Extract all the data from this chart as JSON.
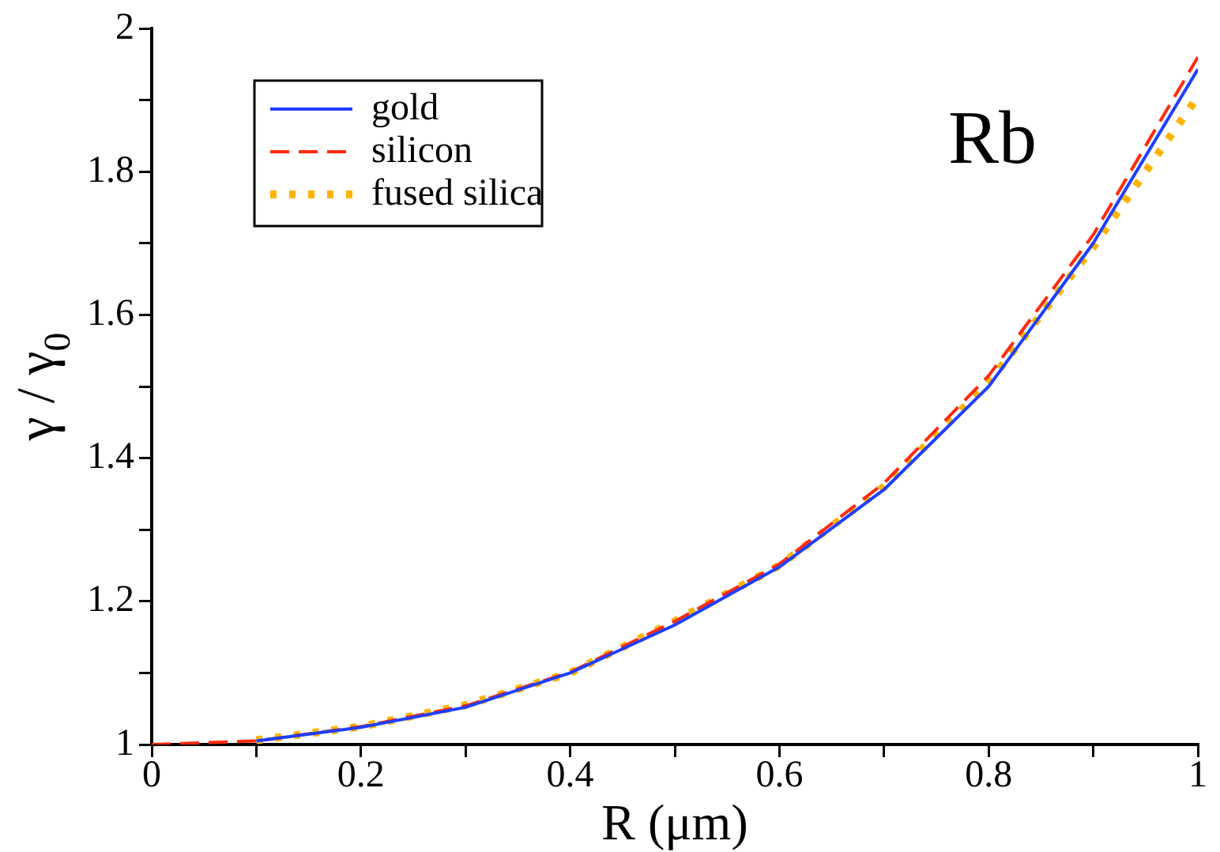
{
  "chart_data": {
    "type": "line",
    "xlabel": "R (μm)",
    "ylabel": "γ / γ$_{0}$",
    "annotations": [
      "Rb"
    ],
    "xlim": [
      0,
      1
    ],
    "ylim": [
      1,
      2
    ],
    "xticks": [
      0,
      {
        "value": 0.1,
        "label": null
      },
      0.2,
      {
        "value": 0.3,
        "label": null
      },
      0.4,
      {
        "value": 0.5,
        "label": null
      },
      0.6,
      {
        "value": 0.7,
        "label": null
      },
      0.8,
      {
        "value": 0.9,
        "label": null
      },
      1
    ],
    "yticks": [
      1,
      {
        "value": 1.1,
        "label": null
      },
      1.2,
      {
        "value": 1.3,
        "label": null
      },
      1.4,
      {
        "value": 1.5,
        "label": null
      },
      1.6,
      {
        "value": 1.7,
        "label": null
      },
      1.8,
      {
        "value": 1.9,
        "label": null
      },
      2
    ],
    "grid": false,
    "legend": "top left",
    "marker": "none",
    "series": [
      {
        "name": "gold",
        "color": "#1f3fff",
        "line_style": "solid",
        "x": [
          0.1,
          0.2,
          0.3,
          0.4,
          0.5,
          0.6,
          0.7,
          0.8,
          0.9,
          1.0
        ],
        "values": [
          1.005,
          1.024,
          1.052,
          1.1,
          1.167,
          1.248,
          1.356,
          1.5,
          1.7,
          1.943
        ]
      },
      {
        "name": "silicon",
        "color": "#ff2a0a",
        "line_style": "dashed",
        "x": [
          0,
          0.1,
          0.2,
          0.3,
          0.4,
          0.5,
          0.6,
          0.7,
          0.8,
          0.9,
          1.0
        ],
        "values": [
          1.0,
          1.005,
          1.025,
          1.054,
          1.101,
          1.172,
          1.252,
          1.365,
          1.515,
          1.712,
          1.96
        ]
      },
      {
        "name": "fused silica",
        "color": "#ffb300",
        "line_style": "dotted",
        "x": [
          0.1,
          0.2,
          0.3,
          0.4,
          0.5,
          0.6,
          0.7,
          0.8,
          0.9,
          1.0
        ],
        "values": [
          1.006,
          1.025,
          1.055,
          1.1,
          1.172,
          1.25,
          1.36,
          1.505,
          1.695,
          1.905
        ]
      }
    ]
  }
}
